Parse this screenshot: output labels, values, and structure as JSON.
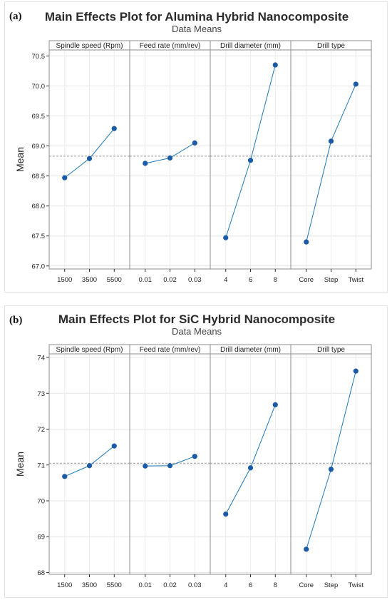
{
  "panels": [
    {
      "label": "(a)"
    },
    {
      "label": "(b)"
    }
  ],
  "chart_data": [
    {
      "type": "line",
      "title": "Main Effects Plot for Alumina Hybrid Nanocomposite",
      "subtitle": "Data Means",
      "ylabel": "Mean",
      "ylim": [
        66.95,
        70.6
      ],
      "yticks": [
        "67.0",
        "67.5",
        "68.0",
        "68.5",
        "69.0",
        "69.5",
        "70.0",
        "70.5"
      ],
      "reference_line": 68.83,
      "line_color": "#1f77b4",
      "marker_color": "#1a5aa6",
      "facets": [
        {
          "name": "Spindle speed (Rpm)",
          "categories": [
            "1500",
            "3500",
            "5500"
          ],
          "values": [
            68.47,
            68.79,
            69.29
          ]
        },
        {
          "name": "Feed rate (mm/rev)",
          "categories": [
            "0.01",
            "0.02",
            "0.03"
          ],
          "values": [
            68.71,
            68.8,
            69.05
          ]
        },
        {
          "name": "Drill diameter (mm)",
          "categories": [
            "4",
            "6",
            "8"
          ],
          "values": [
            67.47,
            68.76,
            70.35
          ]
        },
        {
          "name": "Drill type",
          "categories": [
            "Core",
            "Step",
            "Twist"
          ],
          "values": [
            67.4,
            69.08,
            70.03
          ]
        }
      ]
    },
    {
      "type": "line",
      "title": "Main Effects Plot for SiC Hybrid Nanocomposite",
      "subtitle": "Data Means",
      "ylabel": "Mean",
      "ylim": [
        67.95,
        74.1
      ],
      "yticks": [
        "68",
        "69",
        "70",
        "71",
        "72",
        "73",
        "74"
      ],
      "reference_line": 71.05,
      "line_color": "#1f77b4",
      "marker_color": "#1a5aa6",
      "facets": [
        {
          "name": "Spindle speed (Rpm)",
          "categories": [
            "1500",
            "3500",
            "5500"
          ],
          "values": [
            70.68,
            70.98,
            71.53
          ]
        },
        {
          "name": "Feed rate (mm/rev)",
          "categories": [
            "0.01",
            "0.02",
            "0.03"
          ],
          "values": [
            70.97,
            70.98,
            71.24
          ]
        },
        {
          "name": "Drill diameter (mm)",
          "categories": [
            "4",
            "6",
            "8"
          ],
          "values": [
            69.63,
            70.92,
            72.68
          ]
        },
        {
          "name": "Drill type",
          "categories": [
            "Core",
            "Step",
            "Twist"
          ],
          "values": [
            68.65,
            70.88,
            73.62
          ]
        }
      ]
    }
  ]
}
